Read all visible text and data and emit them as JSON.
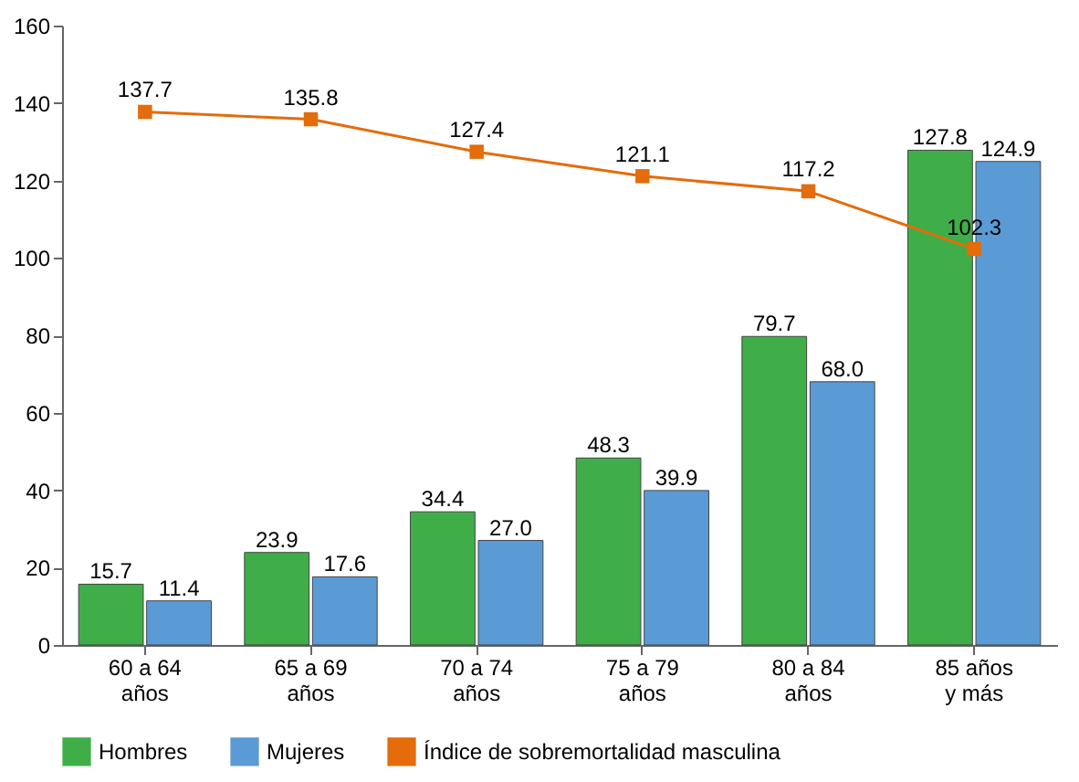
{
  "chart_data": {
    "type": "bar",
    "categories": [
      "60 a 64\naños",
      "65 a 69\naños",
      "70  a 74\naños",
      "75 a 79\naños",
      "80 a 84\naños",
      "85 años\ny más"
    ],
    "series": [
      {
        "name": "Hombres",
        "color": "#3fae49",
        "values": [
          15.7,
          23.9,
          34.4,
          48.3,
          79.7,
          127.8
        ],
        "value_labels": [
          "15.7",
          "23.9",
          "34.4",
          "48.3",
          "79.7",
          "127.8"
        ]
      },
      {
        "name": "Mujeres",
        "color": "#5b9bd5",
        "values": [
          11.4,
          17.6,
          27.0,
          39.9,
          68.0,
          124.9
        ],
        "value_labels": [
          "11.4",
          "17.6",
          "27.0",
          "39.9",
          "68.0",
          "124.9"
        ]
      },
      {
        "name": "Índice de sobremortalidad  masculina",
        "type": "line",
        "color": "#e46c0a",
        "marker": "square",
        "values": [
          137.7,
          135.8,
          127.4,
          121.1,
          117.2,
          102.3
        ],
        "value_labels": [
          "137.7",
          "135.8",
          "127.4",
          "121.1",
          "117.2",
          "102.3"
        ]
      }
    ],
    "ylim": [
      0,
      160
    ],
    "yticks": [
      0,
      20,
      40,
      60,
      80,
      100,
      120,
      140,
      160
    ],
    "grid": false,
    "legend": "bottom"
  }
}
